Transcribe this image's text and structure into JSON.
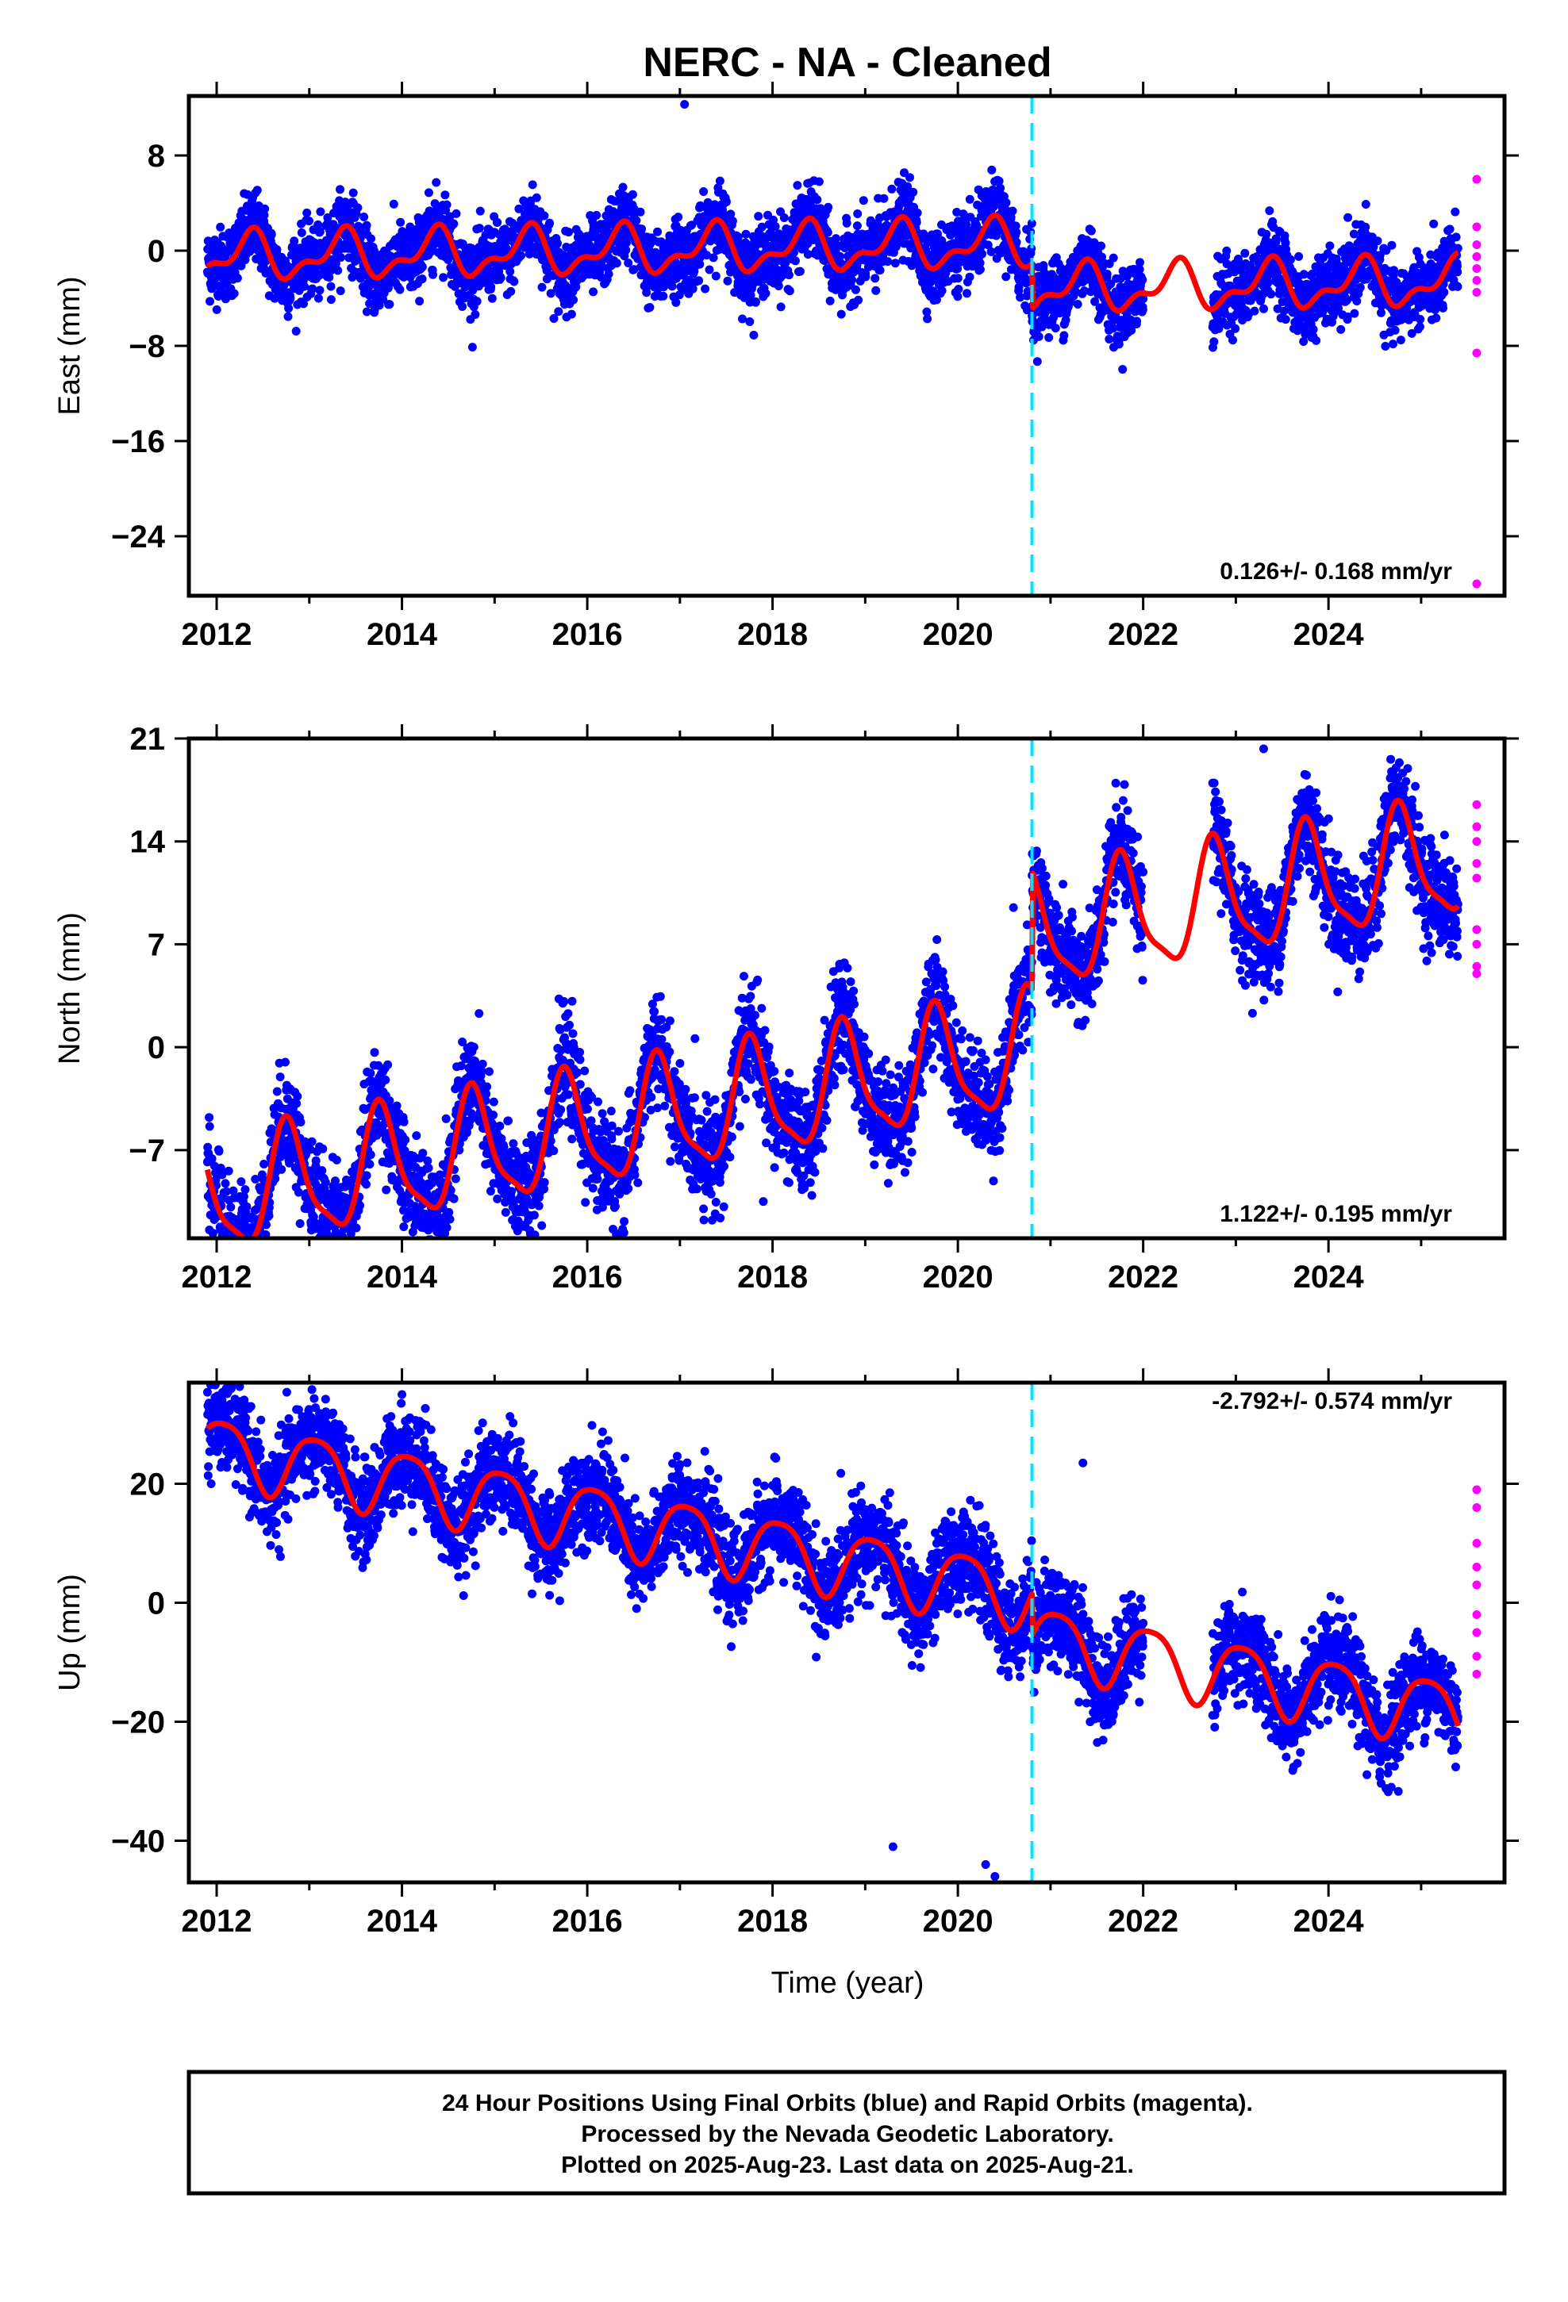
{
  "title": "NERC  - NA - Cleaned",
  "xlabel": "Time (year)",
  "footer": {
    "line1": "24 Hour Positions Using Final Orbits (blue) and Rapid Orbits (magenta).",
    "line2": "Processed by the Nevada Geodetic Laboratory.",
    "line3": "Plotted on 2025-Aug-23. Last data on 2025-Aug-21."
  },
  "colors": {
    "final_orbits": "#0000ff",
    "rapid_orbits": "#ff00ff",
    "model": "#ff0000",
    "discontinuity": "#00e5ff"
  },
  "chart_data": [
    {
      "type": "scatter",
      "component": "east",
      "ylabel": "East (mm)",
      "rate": "0.126+/- 0.168 mm/yr",
      "xlim": [
        2011.7,
        2025.9
      ],
      "ylim": [
        -29,
        13
      ],
      "yticks": [
        8,
        0,
        -8,
        -16,
        -24
      ],
      "ytick_labels": [
        "8",
        "0",
        "−8",
        "−16",
        "−24"
      ],
      "xticks": [
        2012,
        2014,
        2016,
        2018,
        2020,
        2022,
        2024
      ],
      "discontinuity_x": 2020.8,
      "data_span": [
        2011.9,
        2025.4
      ],
      "gap": [
        2022.0,
        2022.75
      ],
      "model": {
        "offset_before": 0.2,
        "offset_after": -3.6,
        "trend": 0.126,
        "annual_amp": 1.7,
        "annual_phase": 0.1,
        "semiannual_amp": 0.9,
        "semiannual_phase": 0.3,
        "step_at_break": -5.4
      },
      "scatter_sigma": 1.5,
      "outliers": [
        [
          2017.05,
          12.3
        ]
      ],
      "rapid_points": [
        [
          2025.6,
          6.0
        ],
        [
          2025.6,
          2.0
        ],
        [
          2025.6,
          0.5
        ],
        [
          2025.6,
          -0.5
        ],
        [
          2025.6,
          -1.5
        ],
        [
          2025.6,
          -2.5
        ],
        [
          2025.6,
          -3.5
        ],
        [
          2025.6,
          -8.6
        ],
        [
          2025.6,
          -28.0
        ]
      ]
    },
    {
      "type": "scatter",
      "component": "north",
      "ylabel": "North (mm)",
      "rate": "1.122+/- 0.195 mm/yr",
      "xlim": [
        2011.7,
        2025.9
      ],
      "ylim": [
        -13,
        21
      ],
      "yticks": [
        21,
        14,
        7,
        0,
        -7
      ],
      "ytick_labels": [
        "21",
        "14",
        "7",
        "0",
        "−7"
      ],
      "xticks": [
        2012,
        2014,
        2016,
        2018,
        2020,
        2022,
        2024
      ],
      "discontinuity_x": 2020.8,
      "data_span": [
        2011.9,
        2025.4
      ],
      "gap": [
        2022.0,
        2022.75
      ],
      "model": {
        "offset_before": -3.5,
        "offset_after": 4.5,
        "trend": 1.122,
        "annual_amp": 3.8,
        "annual_phase": 0.52,
        "semiannual_amp": 1.0,
        "semiannual_phase": 0.1,
        "step_at_break": 3.5
      },
      "scatter_sigma": 1.7,
      "outliers": [
        [
          2020.6,
          9.5
        ],
        [
          2017.9,
          -10.5
        ],
        [
          2012.9,
          -12.0
        ],
        [
          2023.3,
          20.3
        ]
      ],
      "rapid_points": [
        [
          2025.6,
          16.5
        ],
        [
          2025.6,
          15.0
        ],
        [
          2025.6,
          14.0
        ],
        [
          2025.6,
          12.5
        ],
        [
          2025.6,
          11.5
        ],
        [
          2025.6,
          8.0
        ],
        [
          2025.6,
          7.0
        ],
        [
          2025.6,
          5.5
        ],
        [
          2025.6,
          5.0
        ]
      ]
    },
    {
      "type": "scatter",
      "component": "up",
      "ylabel": "Up (mm)",
      "rate": "-2.792+/- 0.574 mm/yr",
      "xlim": [
        2011.7,
        2025.9
      ],
      "ylim": [
        -47,
        37
      ],
      "yticks": [
        20,
        0,
        -20,
        -40
      ],
      "ytick_labels": [
        "20",
        "0",
        "−20",
        "−40"
      ],
      "xticks": [
        2012,
        2014,
        2016,
        2018,
        2020,
        2022,
        2024
      ],
      "discontinuity_x": 2020.8,
      "data_span": [
        2011.9,
        2025.4
      ],
      "gap": [
        2022.0,
        2022.75
      ],
      "model": {
        "offset_before": 9.0,
        "offset_after": 2.0,
        "trend": -2.792,
        "annual_amp": 5.5,
        "annual_phase": 0.82,
        "semiannual_amp": 1.0,
        "semiannual_phase": 0.2,
        "step_at_break": 19.0
      },
      "scatter_sigma": 4.0,
      "outliers": [
        [
          2014.0,
          35.0
        ],
        [
          2013.85,
          28.5
        ],
        [
          2021.35,
          23.5
        ],
        [
          2019.3,
          -41.0
        ],
        [
          2020.3,
          -44.0
        ],
        [
          2020.4,
          -46.0
        ]
      ],
      "rapid_points": [
        [
          2025.6,
          19.0
        ],
        [
          2025.6,
          16.0
        ],
        [
          2025.6,
          10.0
        ],
        [
          2025.6,
          6.0
        ],
        [
          2025.6,
          3.0
        ],
        [
          2025.6,
          -2.0
        ],
        [
          2025.6,
          -5.0
        ],
        [
          2025.6,
          -9.0
        ],
        [
          2025.6,
          -12.0
        ]
      ]
    }
  ]
}
